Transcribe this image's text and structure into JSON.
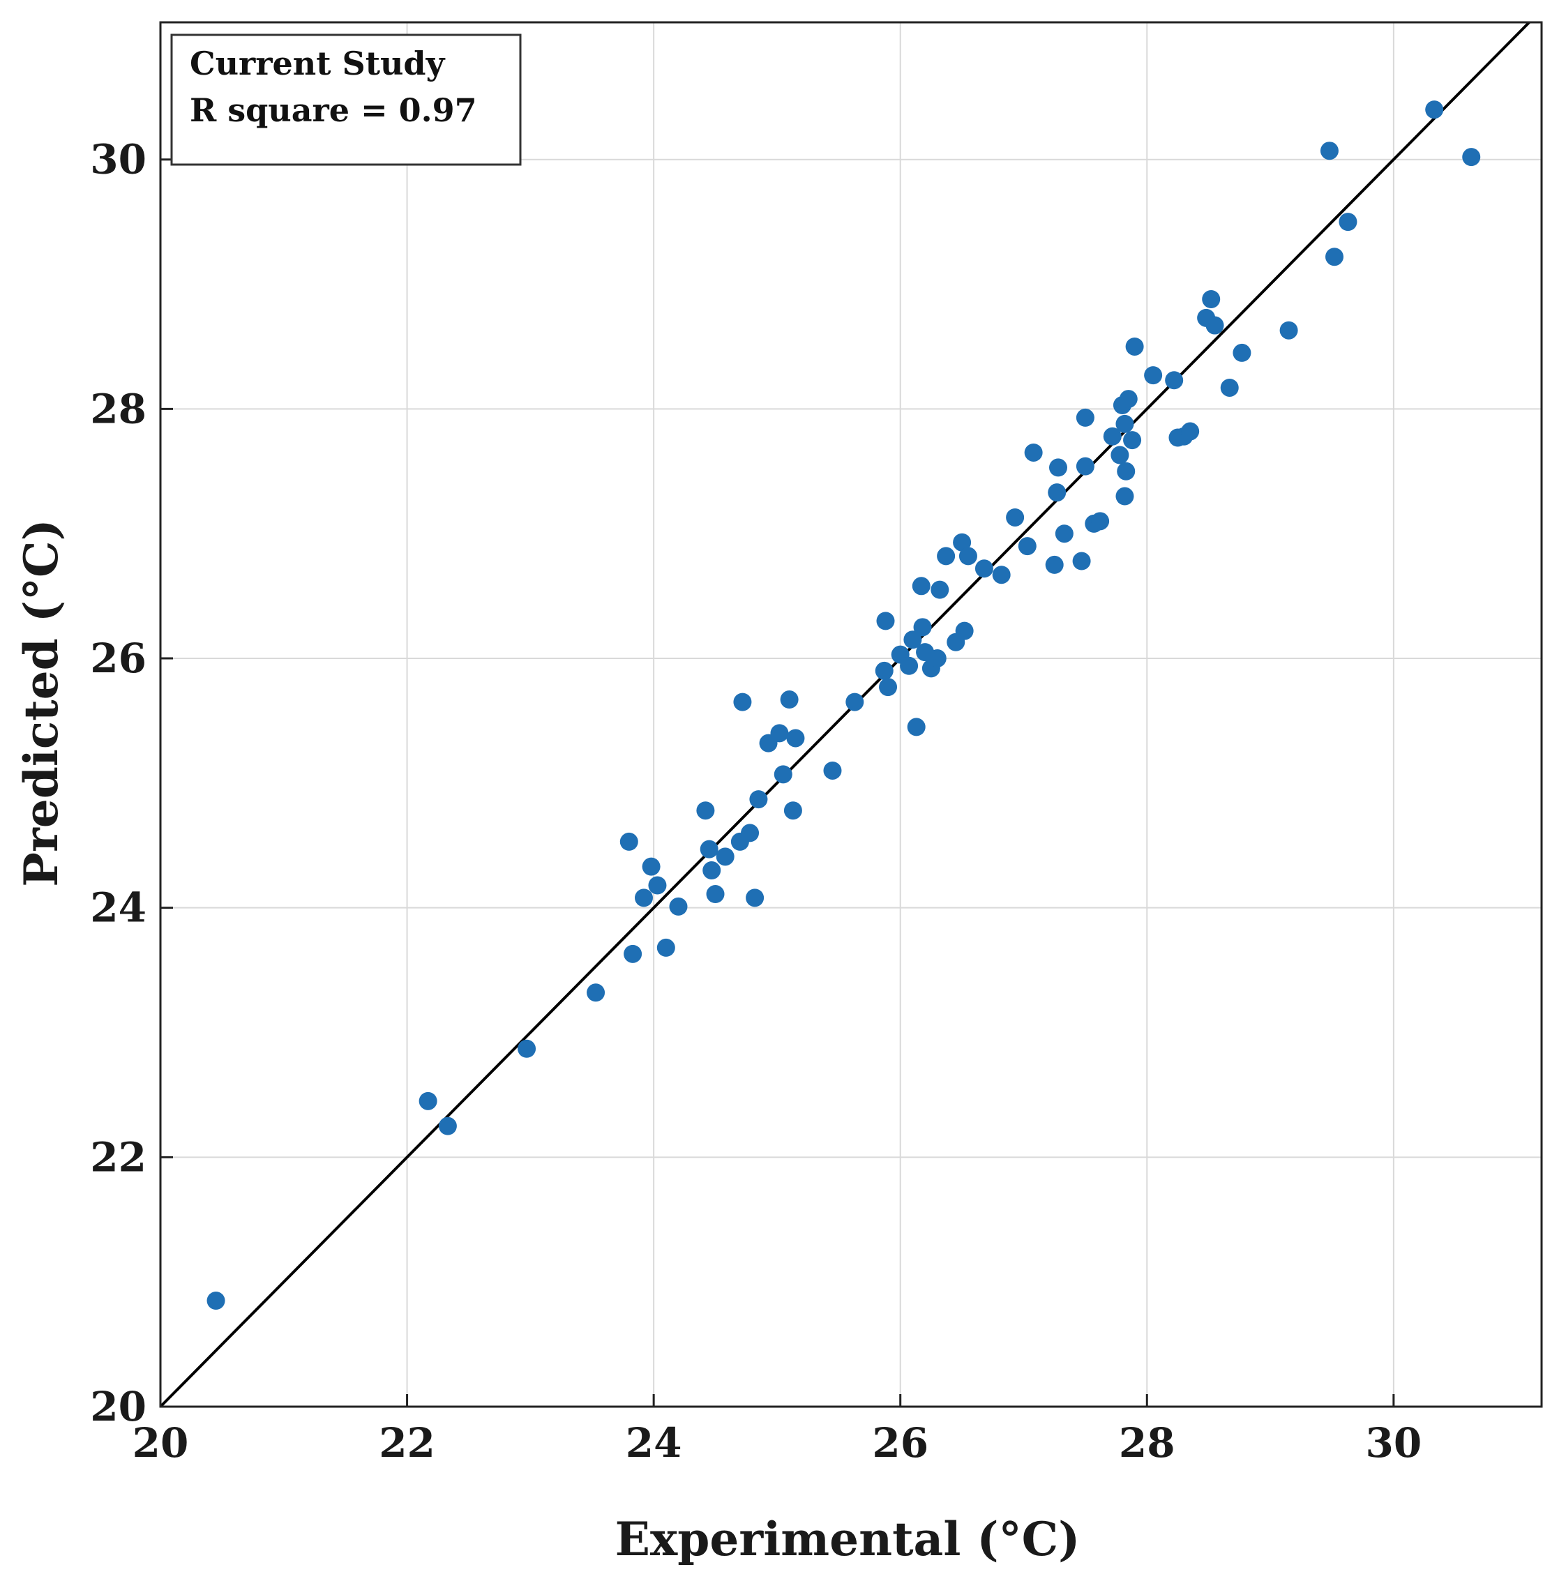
{
  "chart_data": {
    "type": "scatter",
    "title": "",
    "xlabel": "Experimental (°C)",
    "ylabel": "Predicted (°C)",
    "xlim": [
      20,
      31.2
    ],
    "ylim": [
      20,
      31.1
    ],
    "xticks": [
      20,
      22,
      24,
      26,
      28,
      30
    ],
    "yticks": [
      20,
      22,
      24,
      26,
      28,
      30
    ],
    "xtick_labels": [
      "20",
      "22",
      "24",
      "26",
      "28",
      "30"
    ],
    "ytick_labels": [
      "20",
      "22",
      "24",
      "26",
      "28",
      "30"
    ],
    "grid": true,
    "point_color": "#1f6fb4",
    "reference_line": {
      "type": "y=x",
      "color": "#000000"
    },
    "legend": {
      "placement": "top-left",
      "lines": [
        "Current Study",
        "R square = 0.97"
      ]
    },
    "series": [
      {
        "name": "Current Study",
        "points": [
          [
            20.45,
            20.85
          ],
          [
            22.17,
            22.45
          ],
          [
            22.33,
            22.25
          ],
          [
            22.97,
            22.87
          ],
          [
            23.53,
            23.32
          ],
          [
            23.8,
            24.53
          ],
          [
            23.83,
            23.63
          ],
          [
            23.92,
            24.08
          ],
          [
            23.98,
            24.33
          ],
          [
            24.03,
            24.18
          ],
          [
            24.1,
            23.68
          ],
          [
            24.2,
            24.01
          ],
          [
            24.42,
            24.78
          ],
          [
            24.45,
            24.47
          ],
          [
            24.47,
            24.3
          ],
          [
            24.5,
            24.11
          ],
          [
            24.58,
            24.41
          ],
          [
            24.7,
            24.53
          ],
          [
            24.72,
            25.65
          ],
          [
            24.78,
            24.6
          ],
          [
            24.82,
            24.08
          ],
          [
            24.85,
            24.87
          ],
          [
            24.93,
            25.32
          ],
          [
            25.02,
            25.4
          ],
          [
            25.05,
            25.07
          ],
          [
            25.1,
            25.67
          ],
          [
            25.13,
            24.78
          ],
          [
            25.15,
            25.36
          ],
          [
            25.45,
            25.1
          ],
          [
            25.63,
            25.65
          ],
          [
            25.87,
            25.9
          ],
          [
            25.88,
            26.3
          ],
          [
            25.9,
            25.77
          ],
          [
            26.0,
            26.03
          ],
          [
            26.07,
            25.94
          ],
          [
            26.1,
            26.15
          ],
          [
            26.13,
            25.45
          ],
          [
            26.17,
            26.58
          ],
          [
            26.18,
            26.25
          ],
          [
            26.2,
            26.05
          ],
          [
            26.25,
            25.92
          ],
          [
            26.3,
            26.0
          ],
          [
            26.32,
            26.55
          ],
          [
            26.37,
            26.82
          ],
          [
            26.45,
            26.13
          ],
          [
            26.5,
            26.93
          ],
          [
            26.52,
            26.22
          ],
          [
            26.55,
            26.82
          ],
          [
            26.68,
            26.72
          ],
          [
            26.82,
            26.67
          ],
          [
            26.93,
            27.13
          ],
          [
            27.03,
            26.9
          ],
          [
            27.08,
            27.65
          ],
          [
            27.25,
            26.75
          ],
          [
            27.27,
            27.33
          ],
          [
            27.28,
            27.53
          ],
          [
            27.33,
            27.0
          ],
          [
            27.47,
            26.78
          ],
          [
            27.5,
            27.93
          ],
          [
            27.5,
            27.54
          ],
          [
            27.57,
            27.08
          ],
          [
            27.62,
            27.1
          ],
          [
            27.72,
            27.78
          ],
          [
            27.78,
            27.63
          ],
          [
            27.8,
            28.03
          ],
          [
            27.82,
            27.88
          ],
          [
            27.82,
            27.3
          ],
          [
            27.83,
            27.5
          ],
          [
            27.85,
            28.08
          ],
          [
            27.88,
            27.75
          ],
          [
            27.9,
            28.5
          ],
          [
            28.05,
            28.27
          ],
          [
            28.22,
            28.23
          ],
          [
            28.25,
            27.77
          ],
          [
            28.3,
            27.78
          ],
          [
            28.35,
            27.82
          ],
          [
            28.48,
            28.73
          ],
          [
            28.52,
            28.88
          ],
          [
            28.55,
            28.67
          ],
          [
            28.67,
            28.17
          ],
          [
            28.77,
            28.45
          ],
          [
            29.15,
            28.63
          ],
          [
            29.48,
            30.07
          ],
          [
            29.52,
            29.22
          ],
          [
            29.63,
            29.5
          ],
          [
            30.33,
            30.4
          ],
          [
            30.63,
            30.02
          ]
        ]
      }
    ]
  }
}
